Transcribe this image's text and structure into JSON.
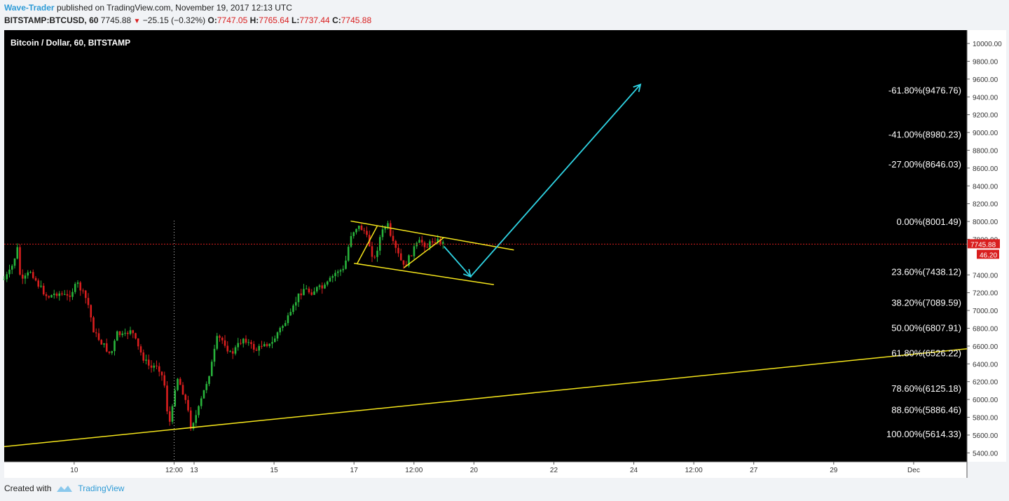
{
  "header": {
    "author": "Wave-Trader",
    "published_text": "published on TradingView.com, November 19, 2017 12:13 UTC",
    "symbol": "BITSTAMP:BTCUSD, 60",
    "last": "7745.88",
    "change": "−25.15 (−0.32%)",
    "o_label": "O:",
    "o_value": "7747.05",
    "h_label": "H:",
    "h_value": "7765.64",
    "l_label": "L:",
    "l_value": "7737.44",
    "c_label": "C:",
    "c_value": "7745.88"
  },
  "footer": {
    "created_with": "Created with",
    "brand": "TradingView"
  },
  "colors": {
    "background": "#000000",
    "up": "#28b33b",
    "down": "#d91e1e",
    "trendline": "#f5e51b",
    "arrow": "#2fd4e4",
    "price_line": "#d91e1e",
    "page": "#f1f3f6"
  },
  "chart_data": {
    "type": "candlestick",
    "title": "Bitcoin / Dollar, 60, BITSTAMP",
    "ylim": [
      5300,
      10150
    ],
    "yticks": [
      "10000.00",
      "9800.00",
      "9600.00",
      "9400.00",
      "9200.00",
      "9000.00",
      "8800.00",
      "8600.00",
      "8400.00",
      "8200.00",
      "8000.00",
      "7800.00",
      "7400.00",
      "7200.00",
      "7000.00",
      "6800.00",
      "6600.00",
      "6400.00",
      "6200.00",
      "6000.00",
      "5800.00",
      "5600.00",
      "5400.00"
    ],
    "xlim": [
      "Nov 8 06:00",
      "Dec 2 08:00"
    ],
    "xticks": [
      {
        "label": "10",
        "t": "Nov 10 00:00"
      },
      {
        "label": "12:00",
        "t": "Nov 12 12:00"
      },
      {
        "label": "13",
        "t": "Nov 13 00:00"
      },
      {
        "label": "15",
        "t": "Nov 15 00:00"
      },
      {
        "label": "17",
        "t": "Nov 17 00:00"
      },
      {
        "label": "12:00",
        "t": "Nov 18 12:00"
      },
      {
        "label": "20",
        "t": "Nov 20 00:00"
      },
      {
        "label": "22",
        "t": "Nov 22 00:00"
      },
      {
        "label": "24",
        "t": "Nov 24 00:00"
      },
      {
        "label": "12:00",
        "t": "Nov 25 12:00"
      },
      {
        "label": "27",
        "t": "Nov 27 00:00"
      },
      {
        "label": "29",
        "t": "Nov 29 00:00"
      },
      {
        "label": "Dec",
        "t": "Dec 1 00:00"
      }
    ],
    "last_price": {
      "value": 7745.88,
      "label": "7745.88",
      "countdown": "46.20"
    },
    "price_path": [
      [
        "Nov 8 06:00",
        7350
      ],
      [
        "Nov 8 10:00",
        7450
      ],
      [
        "Nov 8 14:00",
        7700
      ],
      [
        "Nov 8 16:00",
        7300
      ],
      [
        "Nov 8 22:00",
        7450
      ],
      [
        "Nov 9 02:00",
        7300
      ],
      [
        "Nov 9 08:00",
        7150
      ],
      [
        "Nov 9 14:00",
        7200
      ],
      [
        "Nov 9 20:00",
        7150
      ],
      [
        "Nov 10 02:00",
        7300
      ],
      [
        "Nov 10 08:00",
        7100
      ],
      [
        "Nov 10 12:00",
        6750
      ],
      [
        "Nov 10 18:00",
        6600
      ],
      [
        "Nov 10 22:00",
        6500
      ],
      [
        "Nov 11 02:00",
        6750
      ],
      [
        "Nov 11 06:00",
        6700
      ],
      [
        "Nov 11 10:00",
        6800
      ],
      [
        "Nov 11 14:00",
        6600
      ],
      [
        "Nov 11 18:00",
        6450
      ],
      [
        "Nov 11 22:00",
        6350
      ],
      [
        "Nov 12 02:00",
        6400
      ],
      [
        "Nov 12 06:00",
        6200
      ],
      [
        "Nov 12 08:00",
        5850
      ],
      [
        "Nov 12 10:00",
        5700
      ],
      [
        "Nov 12 12:00",
        6100
      ],
      [
        "Nov 12 14:00",
        6250
      ],
      [
        "Nov 12 18:00",
        6050
      ],
      [
        "Nov 12 20:00",
        5900
      ],
      [
        "Nov 12 22:00",
        5700
      ],
      [
        "Nov 13 02:00",
        5850
      ],
      [
        "Nov 13 06:00",
        6100
      ],
      [
        "Nov 13 10:00",
        6350
      ],
      [
        "Nov 13 14:00",
        6700
      ],
      [
        "Nov 13 18:00",
        6650
      ],
      [
        "Nov 13 22:00",
        6500
      ],
      [
        "Nov 14 02:00",
        6600
      ],
      [
        "Nov 14 06:00",
        6700
      ],
      [
        "Nov 14 10:00",
        6600
      ],
      [
        "Nov 14 14:00",
        6550
      ],
      [
        "Nov 14 18:00",
        6650
      ],
      [
        "Nov 14 22:00",
        6600
      ],
      [
        "Nov 15 02:00",
        6750
      ],
      [
        "Nov 15 06:00",
        6850
      ],
      [
        "Nov 15 10:00",
        6950
      ],
      [
        "Nov 15 14:00",
        7150
      ],
      [
        "Nov 15 18:00",
        7250
      ],
      [
        "Nov 15 22:00",
        7200
      ],
      [
        "Nov 16 02:00",
        7250
      ],
      [
        "Nov 16 06:00",
        7250
      ],
      [
        "Nov 16 10:00",
        7350
      ],
      [
        "Nov 16 14:00",
        7450
      ],
      [
        "Nov 16 18:00",
        7450
      ],
      [
        "Nov 16 20:00",
        7650
      ],
      [
        "Nov 16 22:00",
        7850
      ],
      [
        "Nov 17 02:00",
        7950
      ],
      [
        "Nov 17 06:00",
        7900
      ],
      [
        "Nov 17 10:00",
        7700
      ],
      [
        "Nov 17 12:00",
        7550
      ],
      [
        "Nov 17 16:00",
        7850
      ],
      [
        "Nov 17 20:00",
        7980
      ],
      [
        "Nov 17 22:00",
        7800
      ],
      [
        "Nov 18 02:00",
        7650
      ],
      [
        "Nov 18 06:00",
        7480
      ],
      [
        "Nov 18 08:00",
        7550
      ],
      [
        "Nov 18 12:00",
        7700
      ],
      [
        "Nov 18 16:00",
        7780
      ],
      [
        "Nov 18 20:00",
        7720
      ],
      [
        "Nov 19 00:00",
        7800
      ],
      [
        "Nov 19 04:00",
        7770
      ],
      [
        "Nov 19 06:00",
        7745
      ]
    ],
    "trend_lines": [
      {
        "from": [
          "Nov 8 06:00",
          5470
        ],
        "to": [
          "Dec 2 08:00",
          6570
        ]
      },
      {
        "from": [
          "Nov 16 22:00",
          8005
        ],
        "to": [
          "Nov 21 00:00",
          7680
        ]
      },
      {
        "from": [
          "Nov 17 00:00",
          7530
        ],
        "to": [
          "Nov 20 12:00",
          7290
        ]
      },
      {
        "from": [
          "Nov 17 02:00",
          7530
        ],
        "to": [
          "Nov 17 14:00",
          7950
        ]
      },
      {
        "from": [
          "Nov 18 06:00",
          7480
        ],
        "to": [
          "Nov 19 06:00",
          7820
        ]
      }
    ],
    "projection": [
      [
        "Nov 19 06:00",
        7720
      ],
      [
        "Nov 19 22:00",
        7380
      ],
      [
        "Nov 24 04:00",
        9540
      ]
    ],
    "fib_levels": [
      {
        "label": "-61.80%(9476.76)",
        "value": 9476.76
      },
      {
        "label": "-41.00%(8980.23)",
        "value": 8980.23
      },
      {
        "label": "-27.00%(8646.03)",
        "value": 8646.03
      },
      {
        "label": "0.00%(8001.49)",
        "value": 8001.49
      },
      {
        "label": "23.60%(7438.12)",
        "value": 7438.12
      },
      {
        "label": "38.20%(7089.59)",
        "value": 7089.59
      },
      {
        "label": "50.00%(6807.91)",
        "value": 6807.91
      },
      {
        "label": "61.80%(6526.22)",
        "value": 6526.22
      },
      {
        "label": "78.60%(6125.18)",
        "value": 6125.18
      },
      {
        "label": "88.60%(5886.46)",
        "value": 5886.46
      },
      {
        "label": "100.00%(5614.33)",
        "value": 5614.33
      }
    ],
    "crosshair_time": "Nov 12 12:00"
  }
}
